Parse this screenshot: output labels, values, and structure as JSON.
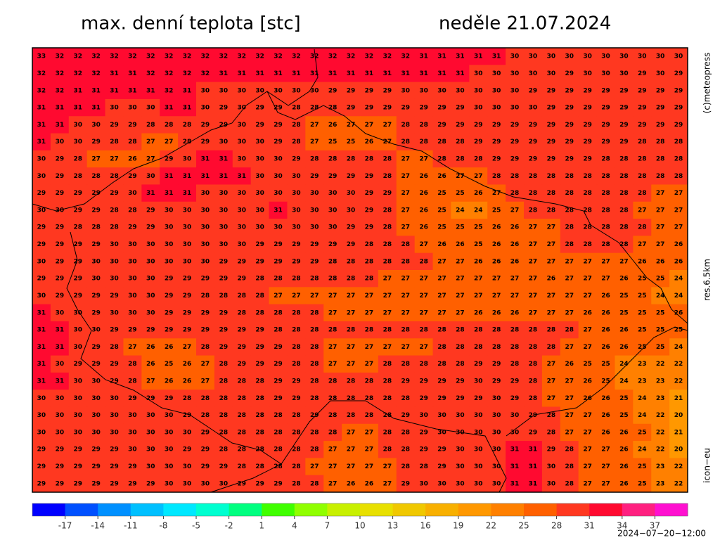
{
  "header": {
    "title": "max. denní teplota [stc]",
    "date": "neděle 21.07.2024"
  },
  "side": {
    "copyright": "(c)meteopress",
    "resolution": "res.6.5km",
    "model": "icon−eu"
  },
  "footer": {
    "run_time": "2024−07−20−12:00"
  },
  "colorbar": {
    "lim": [
      -20,
      40
    ],
    "ticks": [
      -17,
      -14,
      -11,
      -8,
      -5,
      -2,
      1,
      4,
      7,
      10,
      13,
      16,
      19,
      22,
      25,
      28,
      31,
      34,
      37
    ],
    "colors": [
      "#0000ff",
      "#0050ff",
      "#0090ff",
      "#00c0ff",
      "#00e8ff",
      "#00ffd0",
      "#00ff80",
      "#40ff00",
      "#90ff00",
      "#c8f000",
      "#e8e000",
      "#f0c800",
      "#f8b000",
      "#ff9800",
      "#ff8000",
      "#ff6000",
      "#ff3820",
      "#ff0a30",
      "#ff2080",
      "#ff10d0"
    ]
  },
  "grid": [
    [
      33,
      32,
      32,
      32,
      32,
      32,
      32,
      32,
      32,
      32,
      32,
      32,
      32,
      32,
      32,
      32,
      32,
      32,
      32,
      32,
      32,
      31,
      31,
      31,
      31,
      31,
      30,
      30,
      30,
      30,
      30,
      30,
      30,
      30,
      30,
      30
    ],
    [
      32,
      32,
      32,
      32,
      31,
      31,
      32,
      32,
      32,
      32,
      31,
      31,
      31,
      31,
      31,
      31,
      31,
      31,
      31,
      31,
      31,
      31,
      31,
      31,
      30,
      30,
      30,
      30,
      30,
      29,
      30,
      30,
      30,
      29,
      30,
      29
    ],
    [
      32,
      32,
      31,
      31,
      31,
      31,
      31,
      32,
      31,
      30,
      30,
      30,
      30,
      30,
      30,
      30,
      29,
      29,
      29,
      29,
      30,
      30,
      30,
      30,
      30,
      30,
      30,
      29,
      29,
      29,
      29,
      29,
      29,
      29,
      29,
      29
    ],
    [
      31,
      31,
      31,
      31,
      30,
      30,
      30,
      31,
      31,
      30,
      29,
      30,
      29,
      29,
      28,
      28,
      28,
      29,
      29,
      29,
      29,
      29,
      29,
      29,
      30,
      30,
      30,
      30,
      29,
      29,
      29,
      29,
      29,
      29,
      29,
      29
    ],
    [
      31,
      31,
      30,
      30,
      29,
      29,
      28,
      28,
      28,
      29,
      29,
      30,
      29,
      29,
      28,
      27,
      26,
      27,
      27,
      27,
      28,
      28,
      29,
      29,
      29,
      29,
      29,
      29,
      29,
      29,
      29,
      29,
      29,
      29,
      29,
      29
    ],
    [
      31,
      30,
      30,
      29,
      28,
      28,
      27,
      27,
      28,
      29,
      30,
      30,
      30,
      29,
      28,
      27,
      25,
      25,
      26,
      27,
      28,
      28,
      28,
      28,
      29,
      29,
      29,
      29,
      29,
      29,
      29,
      29,
      29,
      28,
      28,
      28
    ],
    [
      30,
      29,
      28,
      27,
      27,
      26,
      27,
      29,
      30,
      31,
      31,
      30,
      30,
      30,
      29,
      28,
      28,
      28,
      28,
      28,
      27,
      27,
      28,
      28,
      28,
      29,
      29,
      29,
      29,
      29,
      29,
      28,
      28,
      28,
      28,
      28
    ],
    [
      30,
      29,
      28,
      28,
      28,
      29,
      30,
      31,
      31,
      31,
      31,
      31,
      30,
      30,
      30,
      29,
      29,
      29,
      29,
      28,
      27,
      26,
      26,
      27,
      27,
      28,
      28,
      28,
      28,
      28,
      28,
      28,
      28,
      28,
      28,
      28
    ],
    [
      29,
      29,
      29,
      29,
      29,
      30,
      31,
      31,
      31,
      30,
      30,
      30,
      30,
      30,
      30,
      30,
      30,
      30,
      29,
      29,
      27,
      26,
      25,
      25,
      26,
      27,
      28,
      28,
      28,
      28,
      28,
      28,
      28,
      28,
      27,
      27
    ],
    [
      30,
      30,
      29,
      29,
      28,
      28,
      29,
      30,
      30,
      30,
      30,
      30,
      30,
      31,
      30,
      30,
      30,
      30,
      29,
      28,
      27,
      26,
      25,
      24,
      24,
      25,
      27,
      28,
      28,
      28,
      28,
      28,
      28,
      27,
      27,
      27
    ],
    [
      29,
      29,
      28,
      28,
      28,
      29,
      29,
      30,
      30,
      30,
      30,
      30,
      30,
      30,
      30,
      30,
      30,
      29,
      29,
      28,
      27,
      26,
      25,
      25,
      25,
      26,
      26,
      27,
      27,
      28,
      28,
      28,
      28,
      28,
      27,
      27
    ],
    [
      29,
      29,
      29,
      29,
      30,
      30,
      30,
      30,
      30,
      30,
      30,
      30,
      29,
      29,
      29,
      29,
      29,
      29,
      28,
      28,
      28,
      27,
      26,
      26,
      25,
      26,
      26,
      27,
      27,
      28,
      28,
      28,
      28,
      27,
      27,
      26
    ],
    [
      30,
      29,
      29,
      30,
      30,
      30,
      30,
      30,
      30,
      30,
      29,
      29,
      29,
      29,
      29,
      29,
      28,
      28,
      28,
      28,
      28,
      28,
      27,
      27,
      26,
      26,
      26,
      27,
      27,
      27,
      27,
      27,
      27,
      26,
      26,
      26
    ],
    [
      29,
      29,
      29,
      30,
      30,
      30,
      30,
      29,
      29,
      29,
      29,
      29,
      28,
      28,
      28,
      28,
      28,
      28,
      28,
      27,
      27,
      27,
      27,
      27,
      27,
      27,
      27,
      27,
      26,
      27,
      27,
      27,
      26,
      25,
      25,
      24
    ],
    [
      30,
      29,
      29,
      29,
      29,
      30,
      30,
      29,
      29,
      28,
      28,
      28,
      28,
      27,
      27,
      27,
      27,
      27,
      27,
      27,
      27,
      27,
      27,
      27,
      27,
      27,
      27,
      27,
      27,
      27,
      27,
      26,
      25,
      25,
      24,
      24
    ],
    [
      31,
      30,
      30,
      29,
      30,
      30,
      30,
      29,
      29,
      29,
      29,
      28,
      28,
      28,
      28,
      28,
      27,
      27,
      27,
      27,
      27,
      27,
      27,
      27,
      26,
      26,
      26,
      27,
      27,
      27,
      26,
      26,
      25,
      25,
      25,
      26
    ],
    [
      31,
      31,
      30,
      30,
      29,
      29,
      29,
      29,
      29,
      29,
      29,
      29,
      29,
      28,
      28,
      28,
      28,
      28,
      28,
      28,
      28,
      28,
      28,
      28,
      28,
      28,
      28,
      28,
      28,
      28,
      27,
      26,
      26,
      25,
      25,
      25
    ],
    [
      31,
      31,
      30,
      29,
      28,
      27,
      26,
      26,
      27,
      28,
      29,
      29,
      29,
      29,
      28,
      28,
      27,
      27,
      27,
      27,
      27,
      27,
      28,
      28,
      28,
      28,
      28,
      28,
      28,
      27,
      27,
      26,
      26,
      25,
      25,
      24
    ],
    [
      31,
      30,
      29,
      29,
      29,
      28,
      26,
      25,
      26,
      27,
      28,
      29,
      29,
      29,
      28,
      28,
      27,
      27,
      27,
      28,
      28,
      28,
      28,
      28,
      29,
      29,
      28,
      28,
      27,
      26,
      25,
      25,
      24,
      23,
      22,
      22
    ],
    [
      31,
      31,
      30,
      30,
      29,
      28,
      27,
      26,
      26,
      27,
      28,
      28,
      28,
      29,
      29,
      28,
      28,
      28,
      28,
      28,
      29,
      29,
      29,
      29,
      30,
      29,
      29,
      28,
      27,
      27,
      26,
      25,
      24,
      23,
      23,
      22
    ],
    [
      30,
      30,
      30,
      30,
      30,
      29,
      29,
      29,
      28,
      28,
      28,
      28,
      28,
      29,
      29,
      28,
      28,
      28,
      28,
      28,
      28,
      29,
      29,
      29,
      29,
      30,
      29,
      28,
      27,
      27,
      26,
      26,
      25,
      24,
      23,
      21
    ],
    [
      30,
      30,
      30,
      30,
      30,
      30,
      30,
      30,
      29,
      28,
      28,
      28,
      28,
      28,
      28,
      29,
      28,
      28,
      28,
      28,
      29,
      30,
      30,
      30,
      30,
      30,
      30,
      29,
      28,
      27,
      27,
      26,
      25,
      24,
      22,
      20
    ],
    [
      30,
      30,
      30,
      30,
      30,
      30,
      30,
      30,
      30,
      29,
      28,
      28,
      28,
      28,
      28,
      28,
      28,
      27,
      27,
      28,
      28,
      29,
      30,
      30,
      30,
      30,
      30,
      29,
      28,
      27,
      27,
      26,
      26,
      25,
      22,
      21
    ],
    [
      29,
      29,
      29,
      29,
      29,
      30,
      30,
      30,
      29,
      29,
      28,
      28,
      28,
      28,
      28,
      28,
      27,
      27,
      27,
      28,
      28,
      29,
      29,
      30,
      30,
      30,
      31,
      31,
      29,
      28,
      27,
      27,
      26,
      24,
      22,
      20
    ],
    [
      29,
      29,
      29,
      29,
      29,
      29,
      30,
      30,
      30,
      29,
      29,
      28,
      28,
      28,
      28,
      27,
      27,
      27,
      27,
      27,
      28,
      28,
      29,
      30,
      30,
      30,
      31,
      31,
      30,
      28,
      27,
      27,
      26,
      25,
      23,
      22
    ],
    [
      29,
      29,
      29,
      29,
      29,
      29,
      29,
      30,
      30,
      30,
      30,
      29,
      29,
      29,
      28,
      28,
      27,
      26,
      26,
      27,
      29,
      30,
      30,
      30,
      30,
      30,
      31,
      31,
      30,
      28,
      27,
      27,
      26,
      25,
      23,
      22
    ]
  ]
}
